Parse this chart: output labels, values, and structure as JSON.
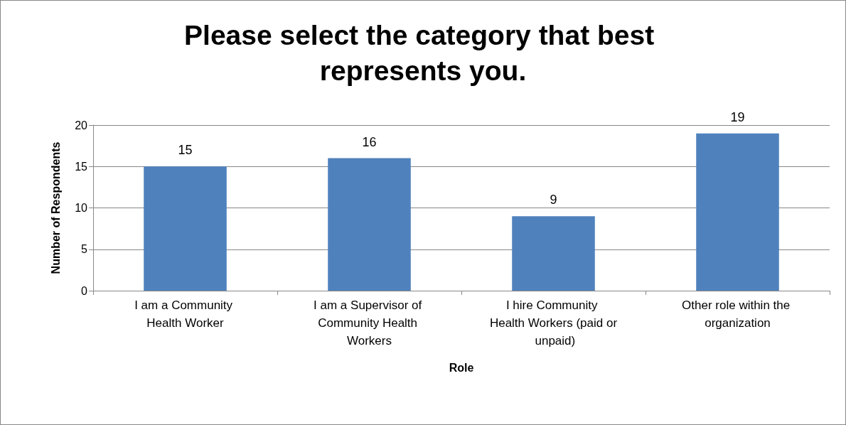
{
  "chart_data": {
    "type": "bar",
    "title": "Please select the category that best represents you.",
    "categories": [
      "I am a Community Health Worker",
      "I am a Supervisor of Community Health Workers",
      "I hire Community Health Workers (paid or unpaid)",
      "Other role within the organization"
    ],
    "values": [
      15,
      16,
      9,
      19
    ],
    "color": "#4f81bd",
    "xlabel": "Role",
    "ylabel": "Number of Respondents",
    "ylim": [
      0,
      20
    ],
    "yticks": [
      0,
      5,
      10,
      15,
      20
    ],
    "grid": "y",
    "data_labels": true
  }
}
